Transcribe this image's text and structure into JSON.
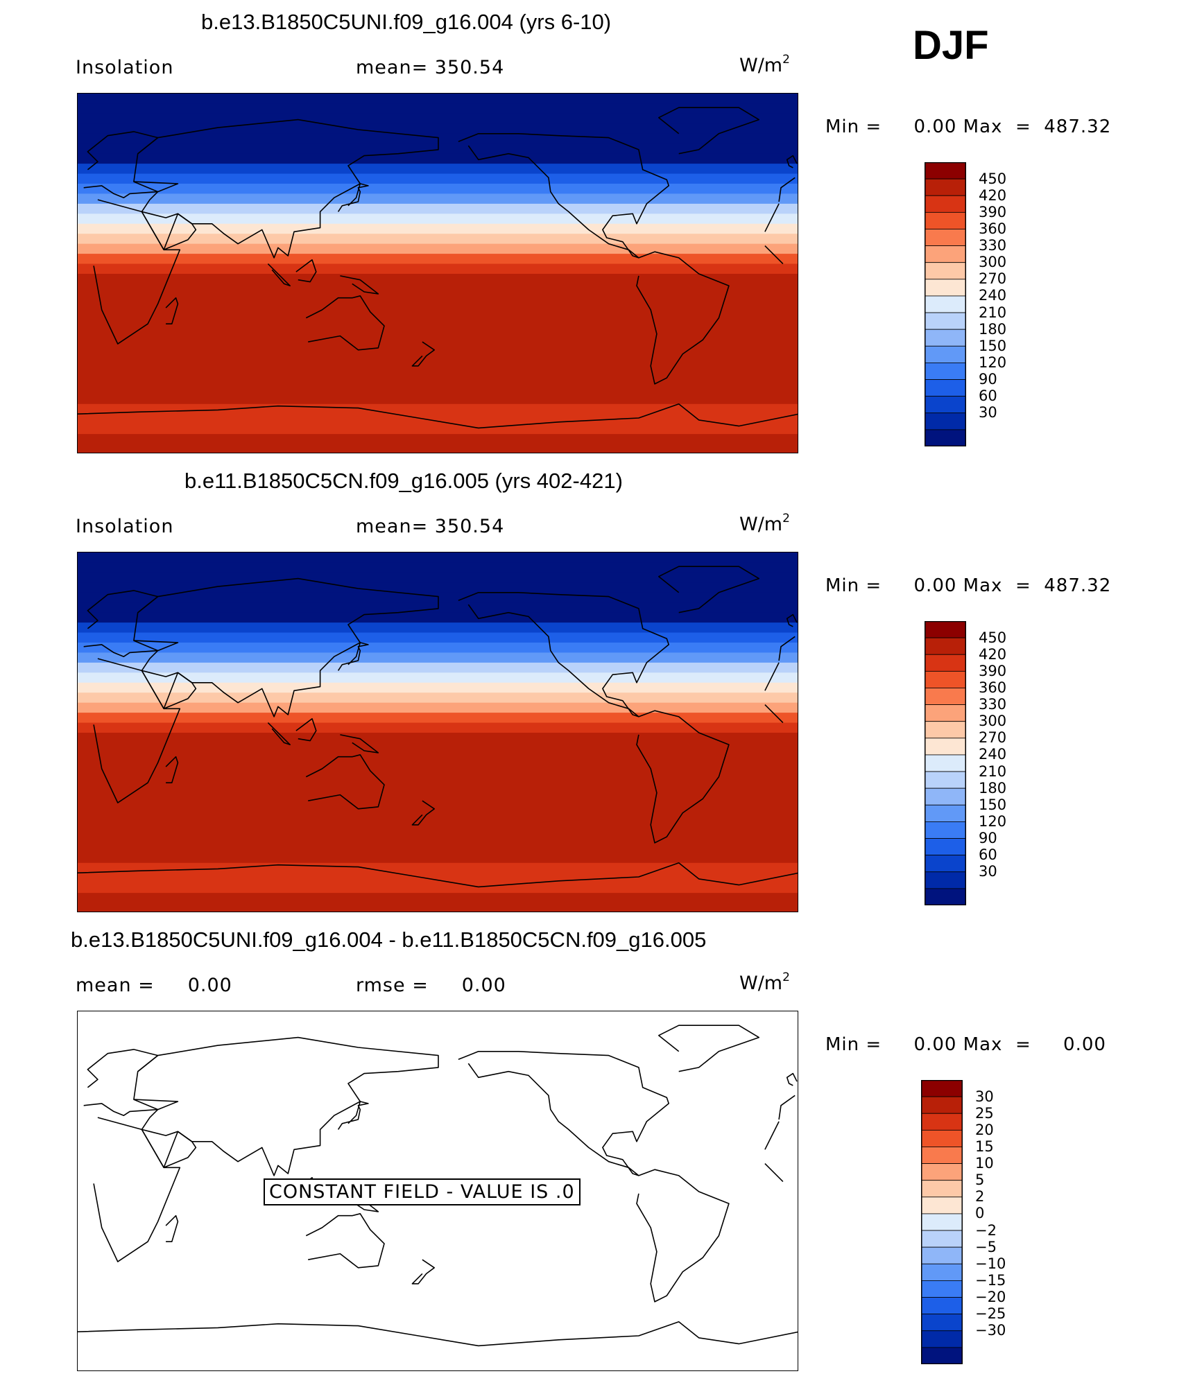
{
  "season": "DJF",
  "panels": [
    {
      "title": "b.e13.B1850C5UNI.f09_g16.004 (yrs 6-10)",
      "variable": "Insolation",
      "stat": "mean= 350.54",
      "units_base": "W/m",
      "units_exp": "2",
      "minmax": "Min =     0.00 Max  =  487.32"
    },
    {
      "title": "b.e11.B1850C5CN.f09_g16.005 (yrs 402-421)",
      "variable": "Insolation",
      "stat": "mean= 350.54",
      "units_base": "W/m",
      "units_exp": "2",
      "minmax": "Min =     0.00 Max  =  487.32"
    },
    {
      "title": "b.e13.B1850C5UNI.f09_g16.004 - b.e11.B1850C5CN.f09_g16.005",
      "variable": "mean =     0.00",
      "stat": "rmse =     0.00",
      "units_base": "W/m",
      "units_exp": "2",
      "minmax": "Min =     0.00 Max  =     0.00",
      "note": "CONSTANT FIELD - VALUE IS .0"
    }
  ],
  "colors": {
    "abs_scale": [
      "#00137e",
      "#002aa8",
      "#0a44cc",
      "#1d5fe8",
      "#3a7cf5",
      "#6199f7",
      "#8fb6f8",
      "#b9d2fa",
      "#dcebfb",
      "#fde6d3",
      "#fdc9a8",
      "#fca37a",
      "#f97a4d",
      "#ee5428",
      "#d83414",
      "#b82008",
      "#8c0000"
    ],
    "diff_scale": [
      "#00137e",
      "#002aa8",
      "#0a44cc",
      "#1d5fe8",
      "#3a7cf5",
      "#6199f7",
      "#8fb6f8",
      "#b9d2fa",
      "#dcebfb",
      "#fde6d3",
      "#fdc9a8",
      "#fca37a",
      "#f97a4d",
      "#ee5428",
      "#d83414",
      "#b82008",
      "#8c0000"
    ]
  },
  "chart_data": [
    {
      "type": "heatmap",
      "title": "b.e13.B1850C5UNI.f09_g16.004 (yrs 6-10)",
      "colorbar_levels": [
        30,
        60,
        90,
        120,
        150,
        180,
        210,
        240,
        270,
        300,
        330,
        360,
        390,
        420,
        450
      ],
      "min": 0.0,
      "max": 487.32,
      "mean": 350.54,
      "latitude_bands": [
        {
          "lat_range": [
            60,
            90
          ],
          "approx_value": 0
        },
        {
          "lat_range": [
            45,
            60
          ],
          "approx_value": 90
        },
        {
          "lat_range": [
            30,
            45
          ],
          "approx_value": 200
        },
        {
          "lat_range": [
            15,
            30
          ],
          "approx_value": 300
        },
        {
          "lat_range": [
            0,
            15
          ],
          "approx_value": 390
        },
        {
          "lat_range": [
            -60,
            0
          ],
          "approx_value": 470
        },
        {
          "lat_range": [
            -75,
            -60
          ],
          "approx_value": 440
        },
        {
          "lat_range": [
            -90,
            -75
          ],
          "approx_value": 480
        }
      ]
    },
    {
      "type": "heatmap",
      "title": "b.e11.B1850C5CN.f09_g16.005 (yrs 402-421)",
      "colorbar_levels": [
        30,
        60,
        90,
        120,
        150,
        180,
        210,
        240,
        270,
        300,
        330,
        360,
        390,
        420,
        450
      ],
      "min": 0.0,
      "max": 487.32,
      "mean": 350.54,
      "latitude_bands": [
        {
          "lat_range": [
            60,
            90
          ],
          "approx_value": 0
        },
        {
          "lat_range": [
            45,
            60
          ],
          "approx_value": 90
        },
        {
          "lat_range": [
            30,
            45
          ],
          "approx_value": 200
        },
        {
          "lat_range": [
            15,
            30
          ],
          "approx_value": 300
        },
        {
          "lat_range": [
            0,
            15
          ],
          "approx_value": 390
        },
        {
          "lat_range": [
            -60,
            0
          ],
          "approx_value": 470
        },
        {
          "lat_range": [
            -75,
            -60
          ],
          "approx_value": 440
        },
        {
          "lat_range": [
            -90,
            -75
          ],
          "approx_value": 480
        }
      ]
    },
    {
      "type": "heatmap",
      "title": "b.e13.B1850C5UNI.f09_g16.004 - b.e11.B1850C5CN.f09_g16.005",
      "colorbar_levels": [
        -30,
        -25,
        -20,
        -15,
        -10,
        -5,
        -2,
        0,
        2,
        5,
        10,
        15,
        20,
        25,
        30
      ],
      "min": 0.0,
      "max": 0.0,
      "mean": 0.0,
      "rmse": 0.0,
      "constant_value": 0.0
    }
  ],
  "colorbar_labels": {
    "abs": [
      "450",
      "420",
      "390",
      "360",
      "330",
      "300",
      "270",
      "240",
      "210",
      "180",
      "150",
      "120",
      "90",
      "60",
      "30"
    ],
    "diff": [
      "30",
      "25",
      "20",
      "15",
      "10",
      "5",
      "2",
      "0",
      "−2",
      "−5",
      "−10",
      "−15",
      "−20",
      "−25",
      "−30"
    ]
  }
}
